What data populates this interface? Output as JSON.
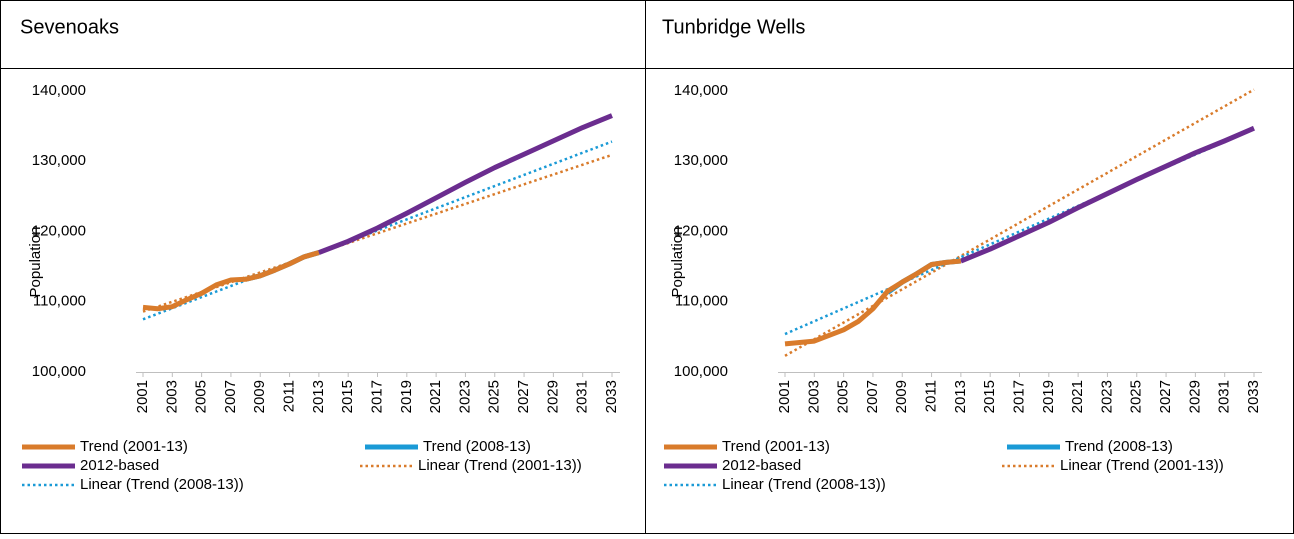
{
  "chart_data": [
    {
      "type": "line",
      "title": "Sevenoaks",
      "y_label": "Population",
      "xlim": [
        2001,
        2033
      ],
      "xticks": [
        2001,
        2003,
        2005,
        2007,
        2009,
        2011,
        2013,
        2015,
        2017,
        2019,
        2021,
        2023,
        2025,
        2027,
        2029,
        2031,
        2033
      ],
      "ylim": [
        100000,
        140000
      ],
      "yticks": [
        {
          "value": 100000,
          "label": "100,000"
        },
        {
          "value": 110000,
          "label": "110,000"
        },
        {
          "value": 120000,
          "label": "120,000"
        },
        {
          "value": 130000,
          "label": "130,000"
        },
        {
          "value": 140000,
          "label": "140,000"
        }
      ],
      "grid": false,
      "series": [
        {
          "name": "Trend (2001-13)",
          "color": "#d97b2b",
          "line_style": "solid",
          "x": [
            2001,
            2002,
            2003,
            2004,
            2005,
            2006,
            2007,
            2008,
            2009,
            2010,
            2011,
            2012,
            2013
          ],
          "values": [
            109200,
            109000,
            109300,
            110300,
            111200,
            112400,
            113100,
            113200,
            113700,
            114500,
            115400,
            116400,
            117000
          ]
        },
        {
          "name": "Trend (2008-13)",
          "color": "#1a9ad6",
          "line_style": "solid",
          "x": [
            2008,
            2009,
            2010,
            2011,
            2012,
            2013
          ],
          "values": [
            113200,
            113700,
            114500,
            115400,
            116400,
            117000
          ]
        },
        {
          "name": "2012-based",
          "color": "#6b2d8f",
          "line_style": "solid",
          "x": [
            2013,
            2015,
            2017,
            2019,
            2021,
            2023,
            2025,
            2027,
            2029,
            2031,
            2033
          ],
          "values": [
            117000,
            118600,
            120500,
            122600,
            124800,
            127000,
            129100,
            131000,
            132900,
            134800,
            136500
          ]
        },
        {
          "name": "Linear (Trend (2001-13))",
          "color": "#d97b2b",
          "line_style": "dotted",
          "x": [
            2001,
            2033
          ],
          "values": [
            108600,
            130900
          ]
        },
        {
          "name": "Linear (Trend (2008-13))",
          "color": "#1a9ad6",
          "line_style": "dotted",
          "x": [
            2001,
            2033
          ],
          "values": [
            107500,
            132800
          ]
        }
      ]
    },
    {
      "type": "line",
      "title": "Tunbridge Wells",
      "y_label": "Population",
      "xlim": [
        2001,
        2033
      ],
      "xticks": [
        2001,
        2003,
        2005,
        2007,
        2009,
        2011,
        2013,
        2015,
        2017,
        2019,
        2021,
        2023,
        2025,
        2027,
        2029,
        2031,
        2033
      ],
      "ylim": [
        100000,
        140000
      ],
      "yticks": [
        {
          "value": 100000,
          "label": "100,000"
        },
        {
          "value": 110000,
          "label": "110,000"
        },
        {
          "value": 120000,
          "label": "120,000"
        },
        {
          "value": 130000,
          "label": "130,000"
        },
        {
          "value": 140000,
          "label": "140,000"
        }
      ],
      "grid": false,
      "series": [
        {
          "name": "Trend (2001-13)",
          "color": "#d97b2b",
          "line_style": "solid",
          "x": [
            2001,
            2002,
            2003,
            2004,
            2005,
            2006,
            2007,
            2008,
            2009,
            2010,
            2011,
            2012,
            2013
          ],
          "values": [
            104000,
            104200,
            104400,
            105200,
            106000,
            107200,
            109000,
            111500,
            112800,
            114000,
            115300,
            115600,
            115800
          ]
        },
        {
          "name": "Trend (2008-13)",
          "color": "#1a9ad6",
          "line_style": "solid",
          "x": [
            2008,
            2009,
            2010,
            2011,
            2012,
            2013
          ],
          "values": [
            111300,
            112800,
            114000,
            115300,
            115600,
            115800
          ]
        },
        {
          "name": "2012-based",
          "color": "#6b2d8f",
          "line_style": "solid",
          "x": [
            2013,
            2015,
            2017,
            2019,
            2021,
            2023,
            2025,
            2027,
            2029,
            2031,
            2033
          ],
          "values": [
            115800,
            117500,
            119400,
            121300,
            123400,
            125400,
            127400,
            129300,
            131200,
            132900,
            134700
          ]
        },
        {
          "name": "Linear (Trend (2001-13))",
          "color": "#d97b2b",
          "line_style": "dotted",
          "x": [
            2001,
            2033
          ],
          "values": [
            102300,
            140200
          ]
        },
        {
          "name": "Linear (Trend (2008-13))",
          "color": "#1a9ad6",
          "line_style": "dotted",
          "x": [
            2001,
            2033
          ],
          "values": [
            105400,
            134600
          ]
        }
      ]
    }
  ]
}
